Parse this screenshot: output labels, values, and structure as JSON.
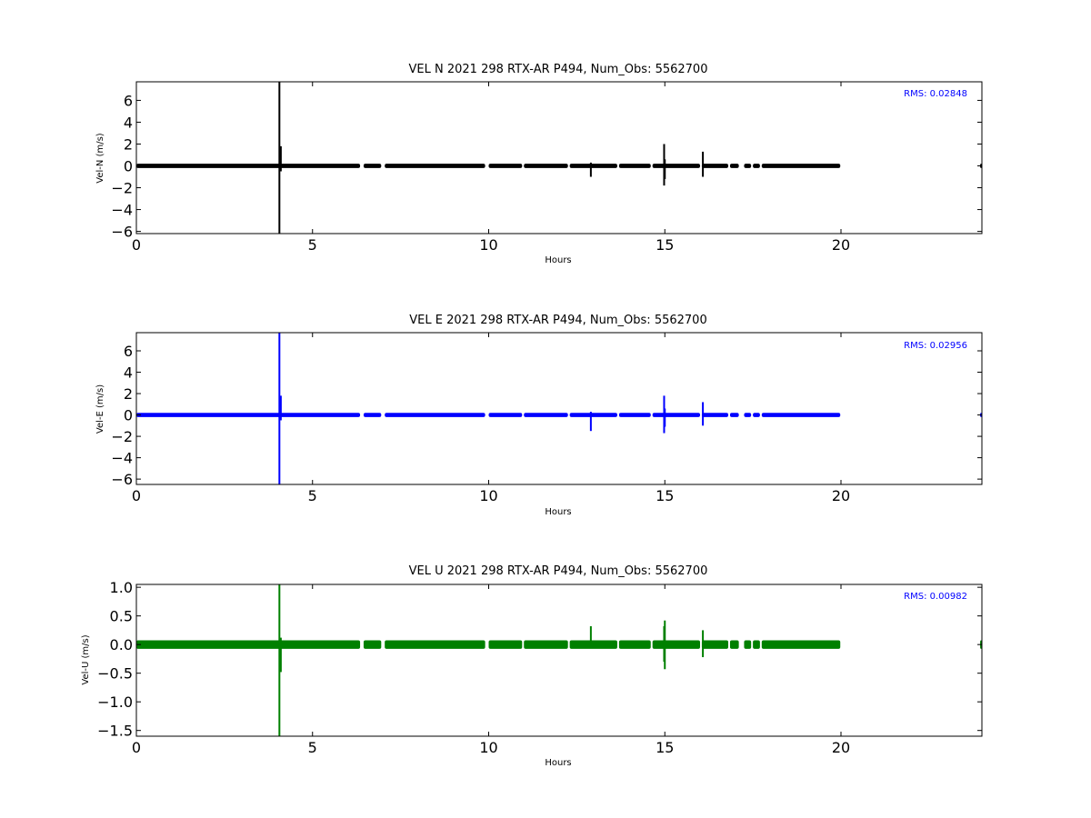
{
  "chart_data": [
    {
      "type": "line",
      "title": "VEL N 2021 298 RTX-AR  P494, Num_Obs: 5562700",
      "xlabel": "Hours",
      "ylabel": "Vel-N (m/s)",
      "xlim": [
        0,
        24
      ],
      "ylim": [
        -6.2,
        7.7
      ],
      "xticks": [
        0,
        5,
        10,
        15,
        20
      ],
      "yticks": [
        -6,
        -4,
        -2,
        0,
        2,
        4,
        6
      ],
      "annotation": "RMS:  0.02848",
      "color": "#000000",
      "band": 0.07,
      "segments": [
        [
          0,
          6.35
        ],
        [
          6.45,
          6.95
        ],
        [
          7.05,
          9.9
        ],
        [
          10.0,
          10.95
        ],
        [
          11.0,
          12.25
        ],
        [
          12.3,
          13.65
        ],
        [
          13.7,
          14.6
        ],
        [
          14.65,
          16.0
        ],
        [
          16.05,
          16.8
        ],
        [
          16.85,
          17.1
        ],
        [
          17.25,
          17.45
        ],
        [
          17.5,
          17.7
        ],
        [
          17.75,
          19.98
        ],
        [
          23.95,
          24.0
        ]
      ],
      "spikes": [
        {
          "x": 4.06,
          "min": -6.2,
          "max": 7.7
        },
        {
          "x": 4.1,
          "min": -0.5,
          "max": 1.8
        },
        {
          "x": 12.9,
          "min": -1.0,
          "max": 0.3
        },
        {
          "x": 14.98,
          "min": -1.8,
          "max": 2.0
        },
        {
          "x": 15.0,
          "min": -1.2,
          "max": 0.6
        },
        {
          "x": 16.08,
          "min": -1.0,
          "max": 1.3
        }
      ]
    },
    {
      "type": "line",
      "title": "VEL E 2021 298 RTX-AR  P494, Num_Obs: 5562700",
      "xlabel": "Hours",
      "ylabel": "Vel-E (m/s)",
      "xlim": [
        0,
        24
      ],
      "ylim": [
        -6.5,
        7.7
      ],
      "xticks": [
        0,
        5,
        10,
        15,
        20
      ],
      "yticks": [
        -6,
        -4,
        -2,
        0,
        2,
        4,
        6
      ],
      "annotation": "RMS:  0.02956",
      "color": "#0000ff",
      "band": 0.07,
      "segments": [
        [
          0,
          6.35
        ],
        [
          6.45,
          6.95
        ],
        [
          7.05,
          9.9
        ],
        [
          10.0,
          10.95
        ],
        [
          11.0,
          12.25
        ],
        [
          12.3,
          13.65
        ],
        [
          13.7,
          14.6
        ],
        [
          14.65,
          16.0
        ],
        [
          16.05,
          16.8
        ],
        [
          16.85,
          17.1
        ],
        [
          17.25,
          17.45
        ],
        [
          17.5,
          17.7
        ],
        [
          17.75,
          19.98
        ],
        [
          23.95,
          24.0
        ]
      ],
      "spikes": [
        {
          "x": 4.06,
          "min": -6.5,
          "max": 7.7
        },
        {
          "x": 4.1,
          "min": -0.5,
          "max": 1.8
        },
        {
          "x": 12.9,
          "min": -1.5,
          "max": 0.3
        },
        {
          "x": 14.98,
          "min": -1.7,
          "max": 1.8
        },
        {
          "x": 15.0,
          "min": -1.1,
          "max": 0.6
        },
        {
          "x": 16.08,
          "min": -1.0,
          "max": 1.2
        }
      ]
    },
    {
      "type": "line",
      "title": "VEL U 2021 298 RTX-AR  P494, Num_Obs: 5562700",
      "xlabel": "Hours",
      "ylabel": "Vel-U (m/s)",
      "xlim": [
        0,
        24
      ],
      "ylim": [
        -1.6,
        1.05
      ],
      "xticks": [
        0,
        5,
        10,
        15,
        20
      ],
      "yticks": [
        -1.5,
        -1.0,
        -0.5,
        0.0,
        0.5,
        1.0
      ],
      "ytick_labels": [
        "−1.5",
        "−1.0",
        "−0.5",
        "0.0",
        "0.5",
        "1.0"
      ],
      "annotation": "RMS:  0.00982",
      "color": "#008000",
      "band": 0.05,
      "segments": [
        [
          0,
          6.35
        ],
        [
          6.45,
          6.95
        ],
        [
          7.05,
          9.9
        ],
        [
          10.0,
          10.95
        ],
        [
          11.0,
          12.25
        ],
        [
          12.3,
          13.65
        ],
        [
          13.7,
          14.6
        ],
        [
          14.65,
          16.0
        ],
        [
          16.05,
          16.8
        ],
        [
          16.85,
          17.1
        ],
        [
          17.25,
          17.45
        ],
        [
          17.5,
          17.7
        ],
        [
          17.75,
          19.98
        ],
        [
          23.95,
          24.0
        ]
      ],
      "spikes": [
        {
          "x": 4.06,
          "min": -1.6,
          "max": 1.05
        },
        {
          "x": 4.1,
          "min": -0.48,
          "max": 0.12
        },
        {
          "x": 12.9,
          "min": -0.05,
          "max": 0.32
        },
        {
          "x": 14.98,
          "min": -0.3,
          "max": 0.32
        },
        {
          "x": 15.0,
          "min": -0.43,
          "max": 0.42
        },
        {
          "x": 16.08,
          "min": -0.22,
          "max": 0.25
        }
      ]
    }
  ]
}
